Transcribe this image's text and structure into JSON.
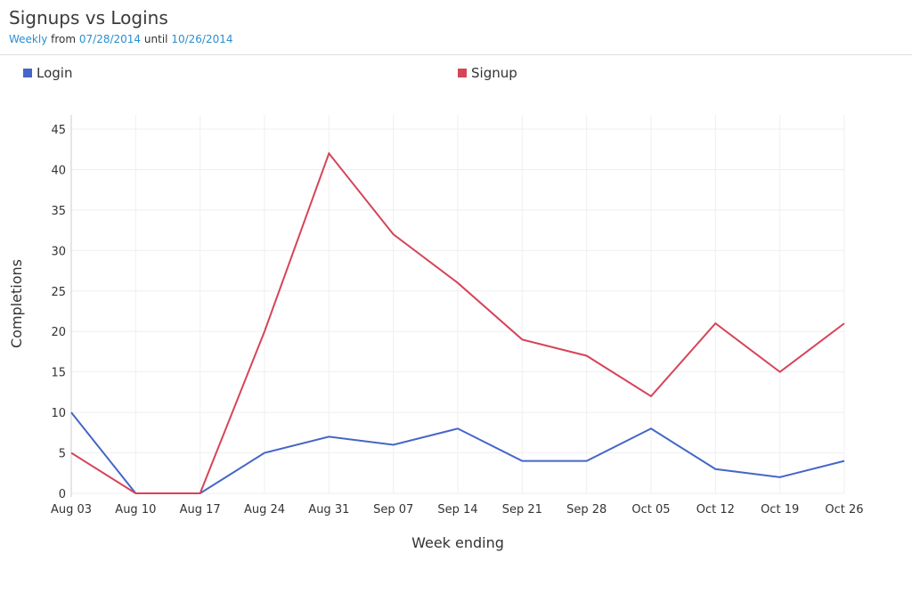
{
  "header": {
    "title": "Signups vs Logins",
    "subtitle": {
      "interval": "Weekly",
      "from_label": "from",
      "from_date": "07/28/2014",
      "until_label": "until",
      "until_date": "10/26/2014"
    }
  },
  "legend": [
    {
      "label": "Login",
      "color": "#4466c8"
    },
    {
      "label": "Signup",
      "color": "#d64458"
    }
  ],
  "chart_data": {
    "type": "line",
    "title": "Signups vs Logins",
    "subtitle": "Weekly from 07/28/2014 until 10/26/2014",
    "xlabel": "Week ending",
    "ylabel": "Completions",
    "ylim": [
      0,
      46
    ],
    "yticks": [
      0,
      5,
      10,
      15,
      20,
      25,
      30,
      35,
      40,
      45
    ],
    "grid": true,
    "legend_position": "top",
    "categories": [
      "Aug 03",
      "Aug 10",
      "Aug 17",
      "Aug 24",
      "Aug 31",
      "Sep 07",
      "Sep 14",
      "Sep 21",
      "Sep 28",
      "Oct 05",
      "Oct 12",
      "Oct 19",
      "Oct 26"
    ],
    "series": [
      {
        "name": "Login",
        "color": "#4466c8",
        "values": [
          10,
          0,
          0,
          5,
          7,
          6,
          8,
          4,
          4,
          8,
          3,
          2,
          4
        ]
      },
      {
        "name": "Signup",
        "color": "#d64458",
        "values": [
          5,
          0,
          0,
          20,
          42,
          32,
          26,
          19,
          17,
          12,
          21,
          15,
          21
        ]
      }
    ]
  }
}
